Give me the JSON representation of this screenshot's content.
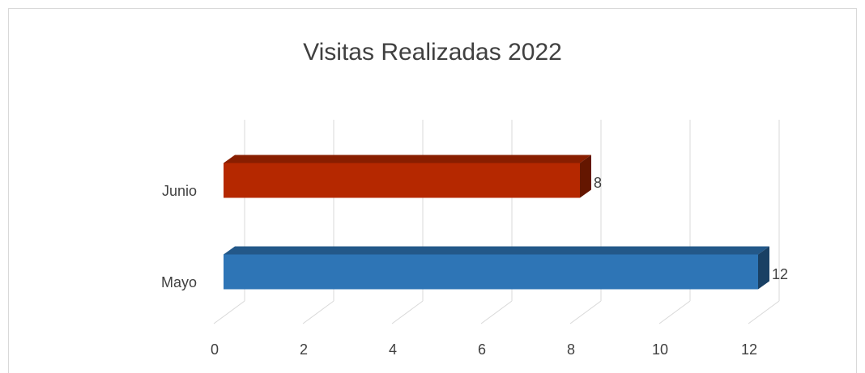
{
  "chart_data": {
    "type": "bar3d",
    "title": "Visitas Realizadas 2022",
    "categories": [
      "Mayo",
      "Junio"
    ],
    "values": [
      12,
      8
    ],
    "colors": [
      "#2e75b6",
      "#b52800"
    ],
    "xlim": [
      0,
      12
    ],
    "xticks": [
      0,
      2,
      4,
      6,
      8,
      10,
      12
    ],
    "grid": true
  }
}
